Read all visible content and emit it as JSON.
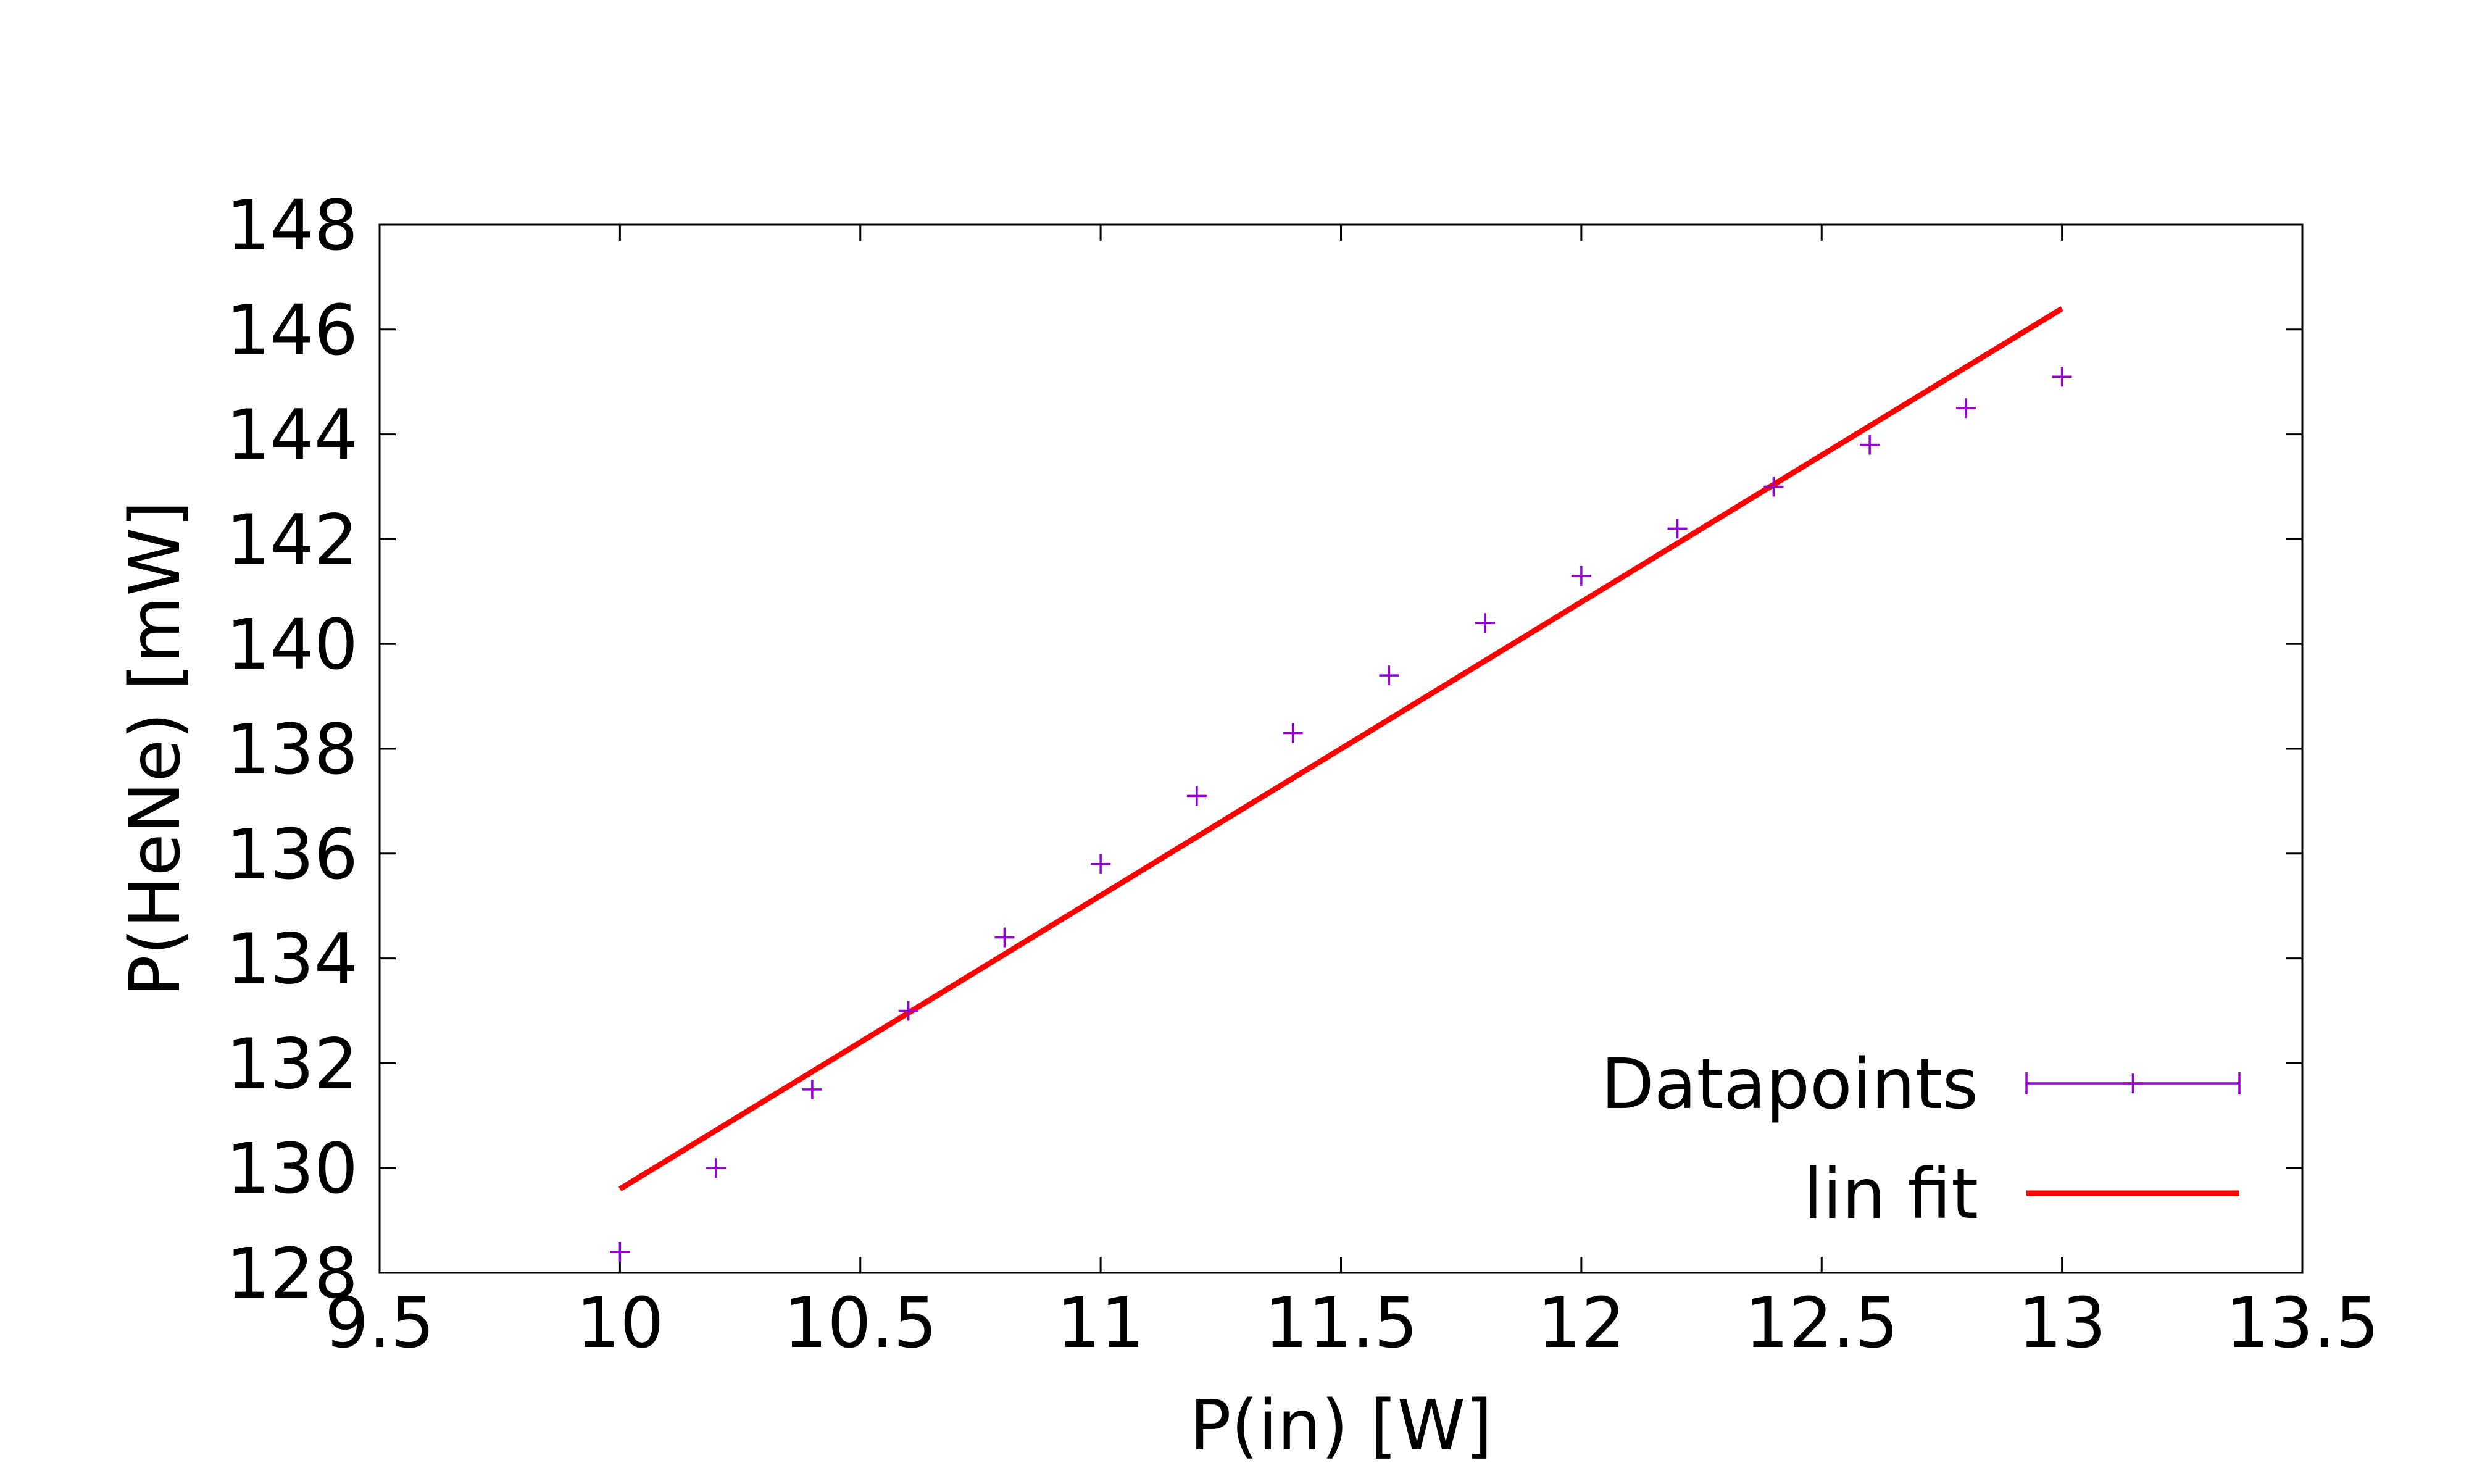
{
  "chart_data": {
    "type": "scatter",
    "xlabel": "P(in) [W]",
    "ylabel": "P(HeNe) [mW]",
    "xlim": [
      9.5,
      13.5
    ],
    "ylim": [
      128,
      148
    ],
    "xticks": [
      "9.5",
      "10",
      "10.5",
      "11",
      "11.5",
      "12",
      "12.5",
      "13",
      "13.5"
    ],
    "yticks": [
      "128",
      "130",
      "132",
      "134",
      "136",
      "138",
      "140",
      "142",
      "144",
      "146",
      "148"
    ],
    "grid": false,
    "legend_position": "bottom-right",
    "series": [
      {
        "name": "Datapoints",
        "type": "scatter",
        "marker": "plus",
        "color": "#9400d3",
        "x": [
          10.0,
          10.2,
          10.4,
          10.6,
          10.8,
          11.0,
          11.2,
          11.4,
          11.6,
          11.8,
          12.0,
          12.2,
          12.4,
          12.6,
          12.8,
          13.0
        ],
        "y": [
          128.4,
          130.0,
          131.5,
          133.0,
          134.4,
          135.8,
          137.1,
          138.3,
          139.4,
          140.4,
          141.3,
          142.2,
          143.0,
          143.8,
          144.5,
          145.1
        ]
      },
      {
        "name": "lin fit",
        "type": "line",
        "color": "#ff0000",
        "x": [
          10.0,
          13.0
        ],
        "y": [
          129.6,
          146.4
        ]
      }
    ]
  }
}
